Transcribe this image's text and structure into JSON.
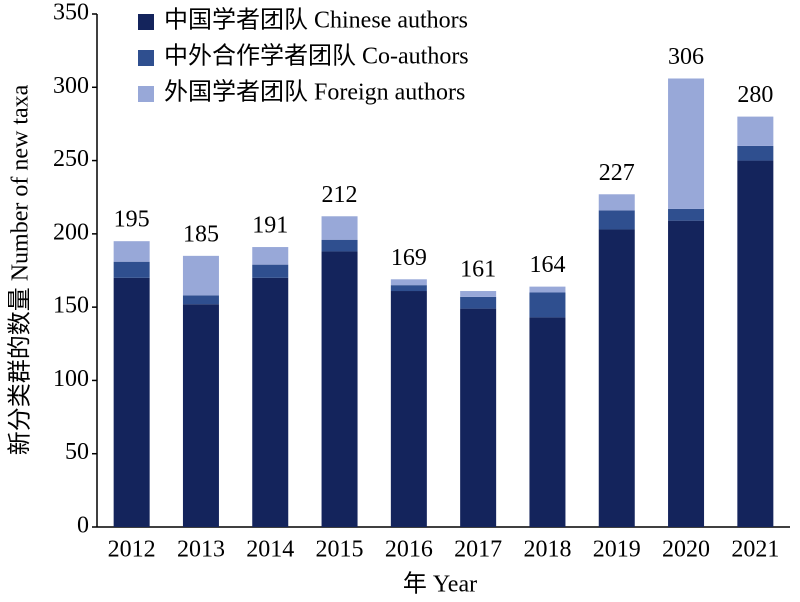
{
  "chart_data": {
    "type": "stacked-bar",
    "x_label": "年 Year",
    "y_label": "新分类群的数量 Number of new taxa",
    "categories": [
      "2012",
      "2013",
      "2014",
      "2015",
      "2016",
      "2017",
      "2018",
      "2019",
      "2020",
      "2021"
    ],
    "series": [
      {
        "name": "中国学者团队 Chinese authors",
        "color": "#14245c",
        "values": [
          170,
          152,
          170,
          188,
          161,
          149,
          143,
          203,
          209,
          250
        ]
      },
      {
        "name": "中外合作学者团队 Co-authors",
        "color": "#2f4f8f",
        "values": [
          11,
          6,
          9,
          8,
          4,
          8,
          17,
          13,
          8,
          10
        ]
      },
      {
        "name": "外国学者团队 Foreign authors",
        "color": "#98a8d8",
        "values": [
          14,
          27,
          12,
          16,
          4,
          4,
          4,
          11,
          89,
          20
        ]
      }
    ],
    "totals": [
      195,
      185,
      191,
      212,
      169,
      161,
      164,
      227,
      306,
      280
    ],
    "ylim": [
      0,
      350
    ],
    "yticks": [
      0,
      50,
      100,
      150,
      200,
      250,
      300,
      350
    ],
    "legend": "top-left"
  }
}
